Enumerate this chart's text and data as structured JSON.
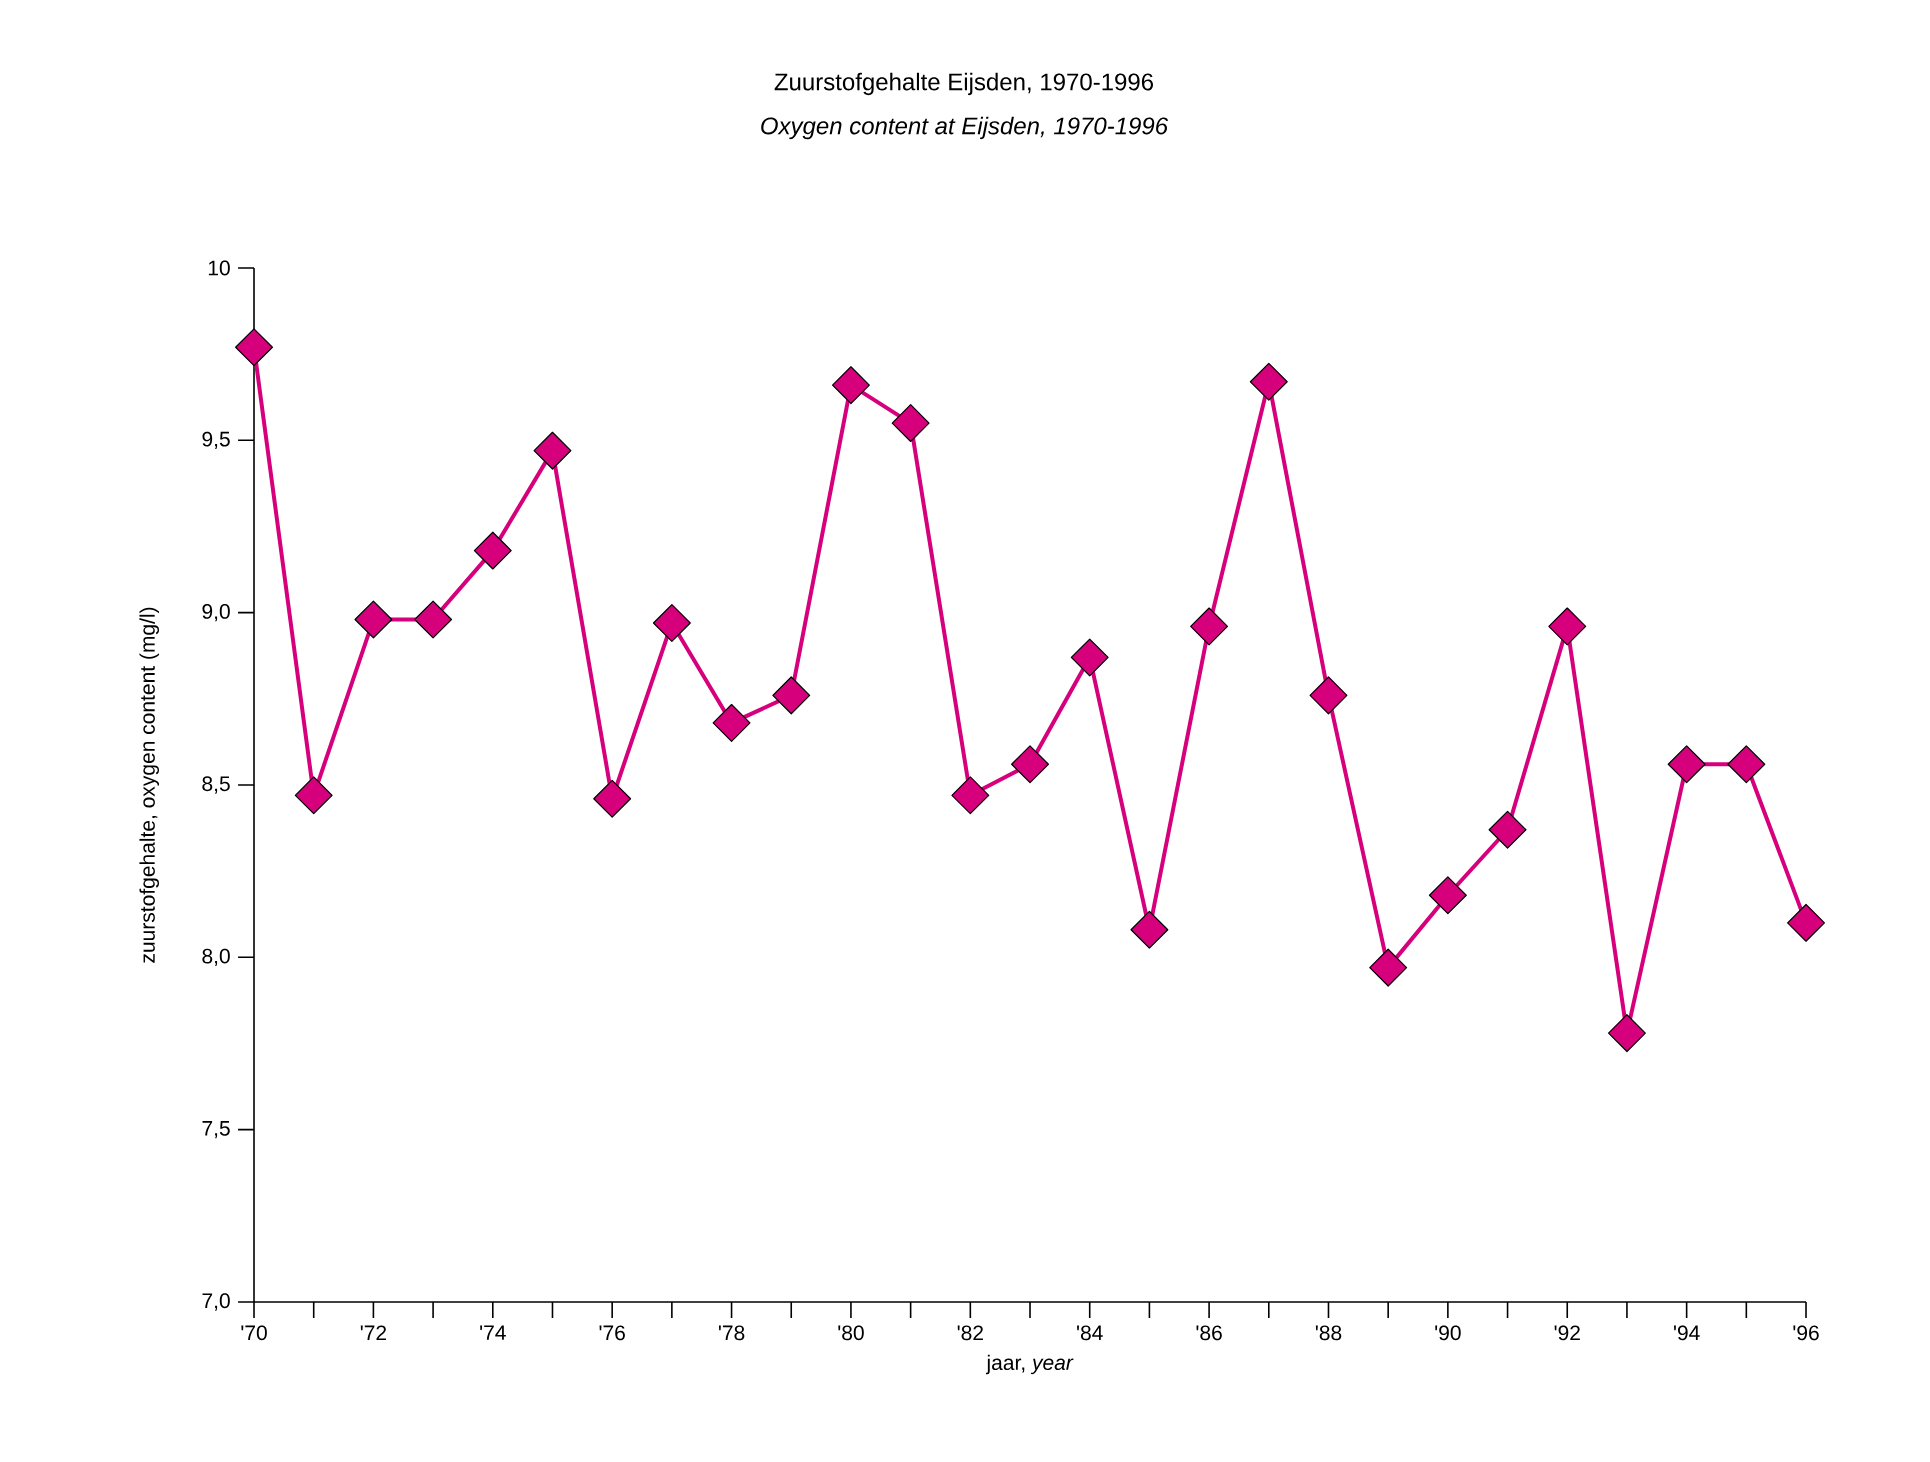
{
  "chart_data": {
    "type": "line",
    "title": "Zuurstofgehalte Eijsden, 1970-1996",
    "subtitle": "*Oxygen content at Eijsden, 1970-1996*",
    "xlabel": "jaar, *year*",
    "ylabel": "zuurstofgehalte, oxygen content (mg/l)",
    "x": [
      1970,
      1971,
      1972,
      1973,
      1974,
      1975,
      1976,
      1977,
      1978,
      1979,
      1980,
      1981,
      1982,
      1983,
      1984,
      1985,
      1986,
      1987,
      1988,
      1989,
      1990,
      1991,
      1992,
      1993,
      1994,
      1995,
      1996
    ],
    "series": [
      {
        "color": "#d6007c",
        "values": [
          9.77,
          8.47,
          8.98,
          8.98,
          9.18,
          9.47,
          8.46,
          8.97,
          8.68,
          8.76,
          9.66,
          9.55,
          8.47,
          8.56,
          8.87,
          8.08,
          8.96,
          9.67,
          8.76,
          7.97,
          8.18,
          8.37,
          8.96,
          7.78,
          8.56,
          8.56,
          8.1
        ]
      }
    ],
    "xlim": [
      1970,
      1996
    ],
    "xticks": [
      {
        "value": 1970,
        "label": "'70"
      },
      {
        "value": 1971,
        "label": null
      },
      {
        "value": 1972,
        "label": "'72"
      },
      {
        "value": 1973,
        "label": null
      },
      {
        "value": 1974,
        "label": "'74"
      },
      {
        "value": 1975,
        "label": null
      },
      {
        "value": 1976,
        "label": "'76"
      },
      {
        "value": 1977,
        "label": null
      },
      {
        "value": 1978,
        "label": "'78"
      },
      {
        "value": 1979,
        "label": null
      },
      {
        "value": 1980,
        "label": "'80"
      },
      {
        "value": 1981,
        "label": null
      },
      {
        "value": 1982,
        "label": "'82"
      },
      {
        "value": 1983,
        "label": null
      },
      {
        "value": 1984,
        "label": "'84"
      },
      {
        "value": 1985,
        "label": null
      },
      {
        "value": 1986,
        "label": "'86"
      },
      {
        "value": 1987,
        "label": null
      },
      {
        "value": 1988,
        "label": "'88"
      },
      {
        "value": 1989,
        "label": null
      },
      {
        "value": 1990,
        "label": "'90"
      },
      {
        "value": 1991,
        "label": null
      },
      {
        "value": 1992,
        "label": "'92"
      },
      {
        "value": 1993,
        "label": null
      },
      {
        "value": 1994,
        "label": "'94"
      },
      {
        "value": 1995,
        "label": null
      },
      {
        "value": 1996,
        "label": "'96"
      }
    ],
    "ylim": [
      7,
      10
    ],
    "yticks": [
      {
        "value": 7,
        "label": "7,0"
      },
      {
        "value": 7.5,
        "label": "7,5"
      },
      {
        "value": 8,
        "label": "8,0"
      },
      {
        "value": 8.5,
        "label": "8,5"
      },
      {
        "value": 9,
        "label": "9,0"
      },
      {
        "value": 9.5,
        "label": "9,5"
      },
      {
        "value": 10,
        "label": "10"
      }
    ],
    "marker": "diamond",
    "line_style": "solid"
  }
}
